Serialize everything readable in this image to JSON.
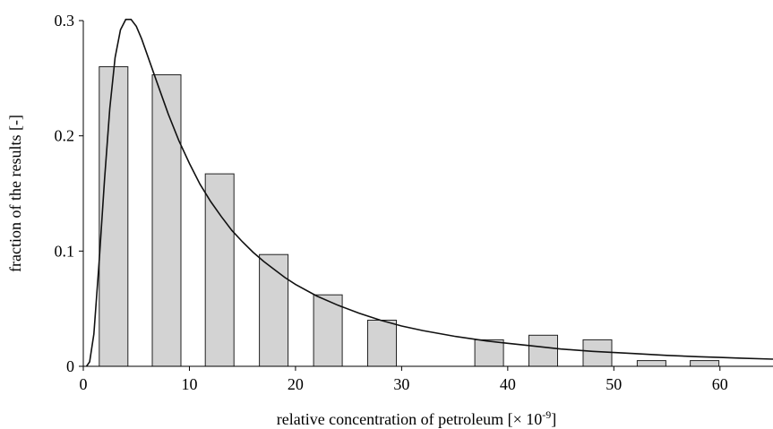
{
  "chart_data": {
    "type": "bar",
    "xlabel": "relative concentration of petroleum [× 10",
    "xlabel_exponent": "-9",
    "xlabel_suffix": "]",
    "ylabel": "fraction of the results [-]",
    "xlim": [
      0,
      65
    ],
    "ylim": [
      0,
      0.3
    ],
    "x_ticks": [
      0,
      10,
      20,
      30,
      40,
      50,
      60
    ],
    "x_tick_labels": [
      "0",
      "10",
      "20",
      "30",
      "40",
      "50",
      "60"
    ],
    "y_ticks": [
      0,
      0.1,
      0.2,
      0.3
    ],
    "y_tick_labels": [
      "0",
      "0.1",
      "0.2",
      "0.3"
    ],
    "bars": [
      {
        "x_start": 1.5,
        "x_end": 4.2,
        "value": 0.26
      },
      {
        "x_start": 6.5,
        "x_end": 9.2,
        "value": 0.253
      },
      {
        "x_start": 11.5,
        "x_end": 14.2,
        "value": 0.167
      },
      {
        "x_start": 16.6,
        "x_end": 19.3,
        "value": 0.097
      },
      {
        "x_start": 21.7,
        "x_end": 24.4,
        "value": 0.062
      },
      {
        "x_start": 26.8,
        "x_end": 29.5,
        "value": 0.04
      },
      {
        "x_start": 36.9,
        "x_end": 39.6,
        "value": 0.023
      },
      {
        "x_start": 42.0,
        "x_end": 44.7,
        "value": 0.027
      },
      {
        "x_start": 47.1,
        "x_end": 49.8,
        "value": 0.023
      },
      {
        "x_start": 52.2,
        "x_end": 54.9,
        "value": 0.005
      },
      {
        "x_start": 57.2,
        "x_end": 59.9,
        "value": 0.005
      }
    ],
    "fitted_curve": {
      "x": [
        0.3,
        0.6,
        1,
        1.5,
        2,
        2.5,
        3,
        3.5,
        4,
        4.5,
        5,
        5.5,
        6,
        7,
        8,
        9,
        10,
        11,
        12,
        13,
        14,
        15,
        16,
        17,
        18,
        19,
        20,
        22,
        24,
        26,
        28,
        30,
        32,
        35,
        38,
        40,
        42,
        45,
        48,
        50,
        52,
        55,
        58,
        60,
        62,
        65
      ],
      "y": [
        0,
        0.004,
        0.028,
        0.092,
        0.162,
        0.224,
        0.268,
        0.292,
        0.301,
        0.301,
        0.295,
        0.284,
        0.271,
        0.245,
        0.219,
        0.196,
        0.176,
        0.158,
        0.143,
        0.13,
        0.118,
        0.108,
        0.099,
        0.091,
        0.084,
        0.077,
        0.071,
        0.061,
        0.053,
        0.046,
        0.04,
        0.035,
        0.031,
        0.026,
        0.022,
        0.02,
        0.018,
        0.015,
        0.013,
        0.012,
        0.011,
        0.0095,
        0.0083,
        0.0077,
        0.0071,
        0.0062
      ]
    },
    "grid": false,
    "legend": "none"
  }
}
